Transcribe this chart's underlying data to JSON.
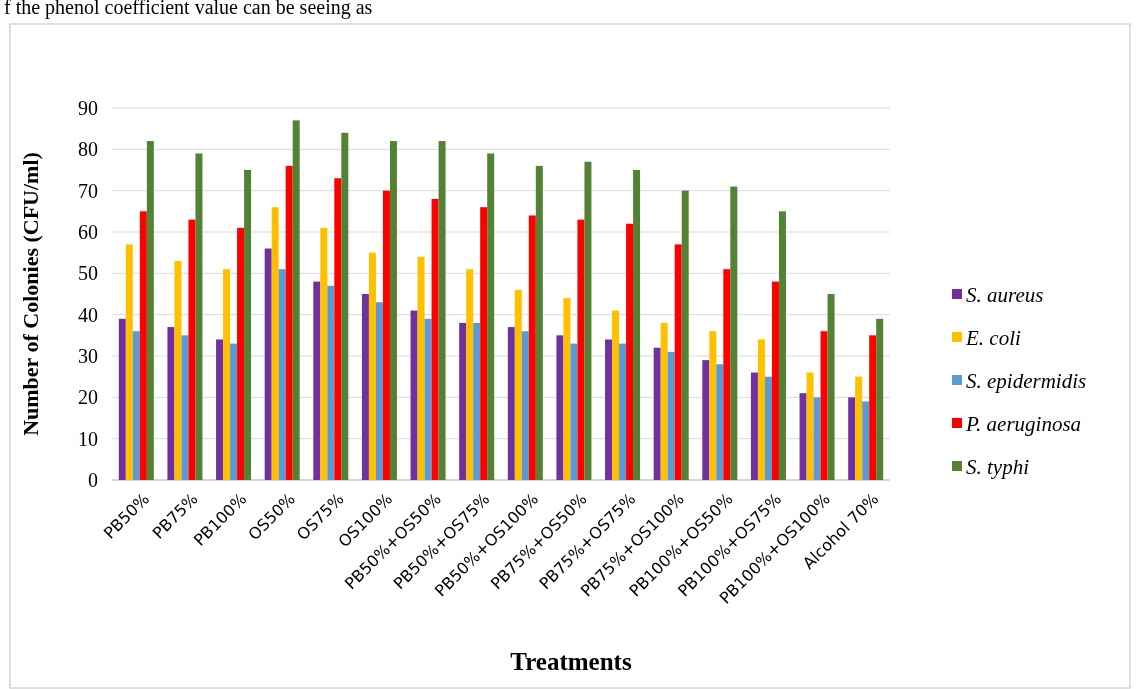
{
  "chart_data": {
    "type": "bar",
    "xlabel": "Treatments",
    "ylabel": "Number of Colonies (CFU/ml)",
    "annotations": [
      "f the phenol coefficient value can be seeing as"
    ],
    "categories": [
      "PB50%",
      "PB75%",
      "PB100%",
      "OS50%",
      "OS75%",
      "OS100%",
      "PB50%+OS50%",
      "PB50%+OS75%",
      "PB50%+OS100%",
      "PB75%+OS50%",
      "PB75%+OS75%",
      "PB75%+OS100%",
      "PB100%+OS50%",
      "PB100%+OS75%",
      "PB100%+OS100%",
      "Alcohol 70%"
    ],
    "series": [
      {
        "name": "S. aureus",
        "color": "#7030a0",
        "values": [
          39,
          37,
          34,
          56,
          48,
          45,
          41,
          38,
          37,
          35,
          34,
          32,
          29,
          26,
          21,
          20
        ]
      },
      {
        "name": "E. coli",
        "color": "#ffc000",
        "values": [
          57,
          53,
          51,
          66,
          61,
          55,
          54,
          51,
          46,
          44,
          41,
          38,
          36,
          34,
          26,
          25
        ]
      },
      {
        "name": "S. epidermidis",
        "color": "#5b9bd5",
        "values": [
          36,
          35,
          33,
          51,
          47,
          43,
          39,
          38,
          36,
          33,
          33,
          31,
          28,
          25,
          20,
          19
        ]
      },
      {
        "name": "P. aeruginosa",
        "color": "#ff0000",
        "values": [
          65,
          63,
          61,
          76,
          73,
          70,
          68,
          66,
          64,
          63,
          62,
          57,
          51,
          48,
          36,
          35
        ]
      },
      {
        "name": "S. typhi",
        "color": "#548235",
        "values": [
          82,
          79,
          75,
          87,
          84,
          82,
          82,
          79,
          76,
          77,
          75,
          70,
          71,
          65,
          45,
          39
        ]
      }
    ],
    "ylim": [
      0,
      90
    ],
    "yticks": [
      0,
      10,
      20,
      30,
      40,
      50,
      60,
      70,
      80,
      90
    ],
    "grid": "y",
    "legend": "right"
  }
}
